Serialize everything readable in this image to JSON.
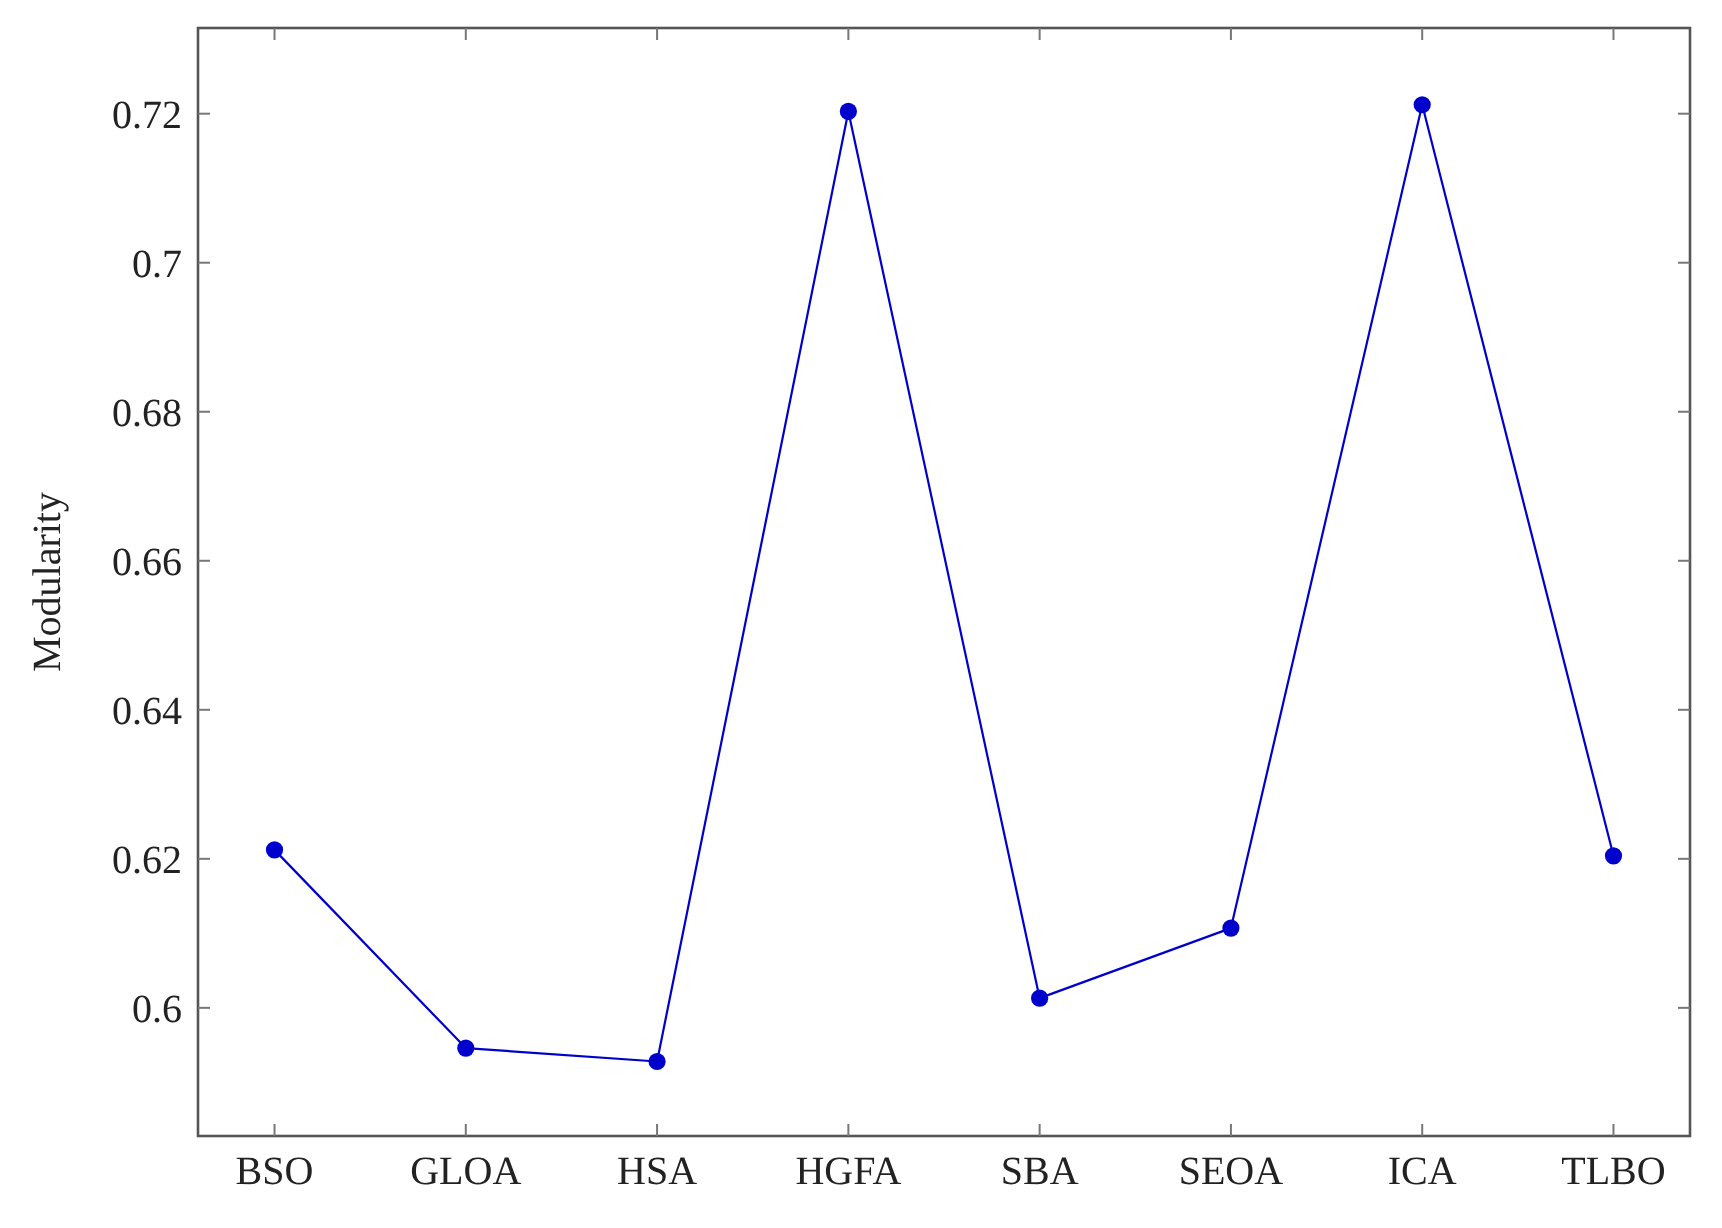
{
  "chart_data": {
    "type": "line",
    "ylabel": "Modularity",
    "categories": [
      "BSO",
      "GLOA",
      "HSA",
      "HGFA",
      "SBA",
      "SEOA",
      "ICA",
      "TLBO"
    ],
    "series": [
      {
        "color": "#0000cc",
        "values": [
          0.6212,
          0.5946,
          0.5928,
          0.7203,
          0.6013,
          0.6107,
          0.7212,
          0.6204
        ]
      }
    ],
    "ylim": [
      0.5828,
      0.7315
    ],
    "yticks": [
      0.6,
      0.62,
      0.64,
      0.66,
      0.68,
      0.7,
      0.72
    ],
    "grid": false,
    "marker": "circle",
    "line_style": "solid"
  }
}
